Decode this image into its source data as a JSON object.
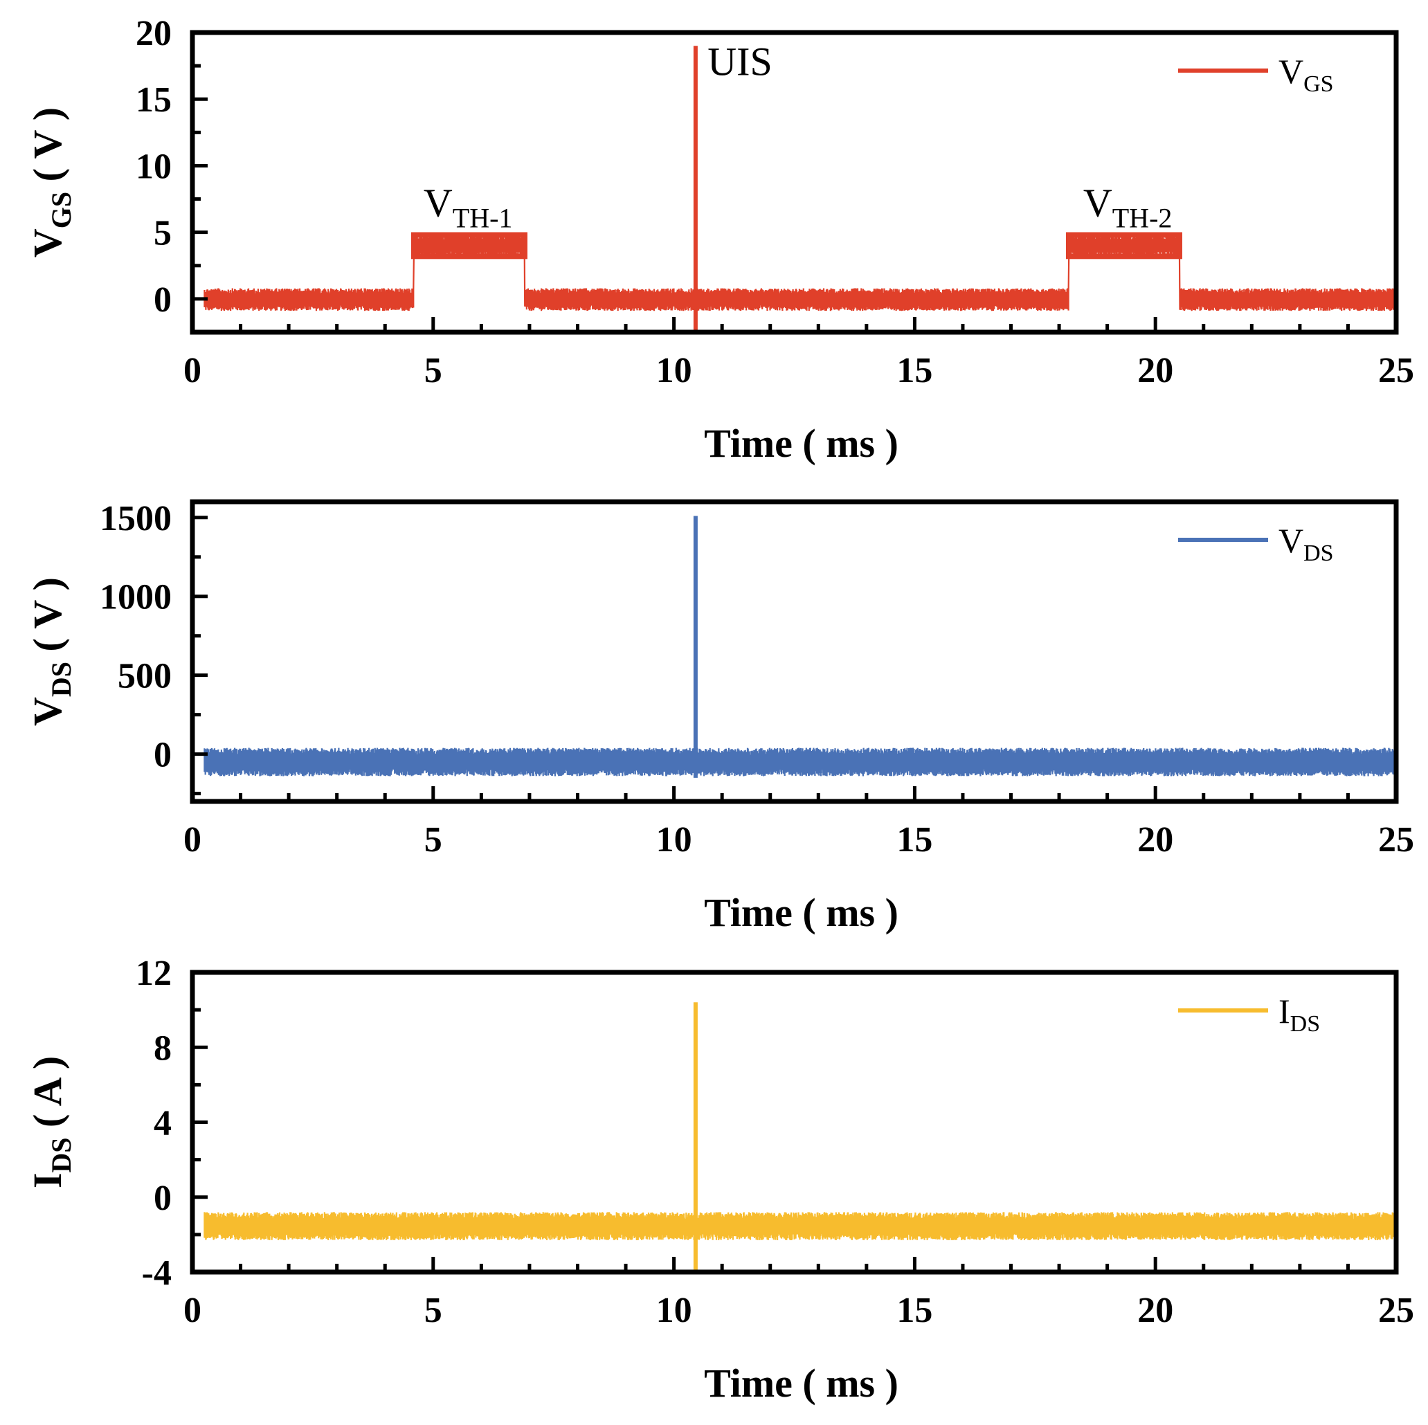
{
  "chart_data": [
    {
      "type": "line",
      "xlabel": "Time ( ms )",
      "ylabel": {
        "main": "V",
        "sub": "GS",
        "unit": " ( V )"
      },
      "xlim": [
        0,
        25
      ],
      "ylim": [
        -2.5,
        20
      ],
      "xticks": [
        0,
        5,
        10,
        15,
        20,
        25
      ],
      "yticks": [
        0,
        5,
        10,
        15,
        20
      ],
      "legend": {
        "main": "V",
        "sub": "GS",
        "position": "top-right"
      },
      "color": "#e0402a",
      "grid": false,
      "series": [
        {
          "name": "VGS",
          "baseline": 0,
          "noise_band": [
            -0.9,
            0.8
          ],
          "pulses": [
            {
              "start": 4.6,
              "end": 6.9,
              "band": [
                3.2,
                4.8
              ]
            },
            {
              "start": 18.2,
              "end": 20.5,
              "band": [
                3.2,
                4.8
              ]
            }
          ],
          "spike": {
            "x": 10.45,
            "peak": 19,
            "min": -2.5
          }
        }
      ],
      "annotations": [
        {
          "main": "V",
          "sub": "TH-1",
          "x": 4.8,
          "y": 6.2
        },
        {
          "main": "UIS",
          "sub": "",
          "x": 10.7,
          "y": 16.8
        },
        {
          "main": "V",
          "sub": "TH-2",
          "x": 18.5,
          "y": 6.2
        }
      ]
    },
    {
      "type": "line",
      "xlabel": "Time ( ms )",
      "ylabel": {
        "main": "V",
        "sub": "DS",
        "unit": " ( V )"
      },
      "xlim": [
        0,
        25
      ],
      "ylim": [
        -300,
        1600
      ],
      "xticks": [
        0,
        5,
        10,
        15,
        20,
        25
      ],
      "yticks": [
        0,
        500,
        1000,
        1500
      ],
      "legend": {
        "main": "V",
        "sub": "DS",
        "position": "top-right"
      },
      "color": "#4a72b6",
      "grid": false,
      "series": [
        {
          "name": "VDS",
          "baseline": -50,
          "noise_band": [
            -140,
            40
          ],
          "pulses": [],
          "spike": {
            "x": 10.45,
            "peak": 1510,
            "min": -150
          }
        }
      ],
      "annotations": []
    },
    {
      "type": "line",
      "xlabel": "Time ( ms )",
      "ylabel": {
        "main": "I",
        "sub": "DS",
        "unit": " ( A )"
      },
      "xlim": [
        0,
        25
      ],
      "ylim": [
        -4,
        12
      ],
      "xticks": [
        0,
        5,
        10,
        15,
        20,
        25
      ],
      "yticks": [
        -4,
        0,
        4,
        8,
        12
      ],
      "legend": {
        "main": "I",
        "sub": "DS",
        "position": "top-right"
      },
      "color": "#f7bc2e",
      "grid": false,
      "series": [
        {
          "name": "IDS",
          "baseline": -1.5,
          "noise_band": [
            -2.3,
            -0.8
          ],
          "pulses": [],
          "spike": {
            "x": 10.45,
            "peak": 10.4,
            "min": -4
          }
        }
      ],
      "annotations": []
    }
  ]
}
